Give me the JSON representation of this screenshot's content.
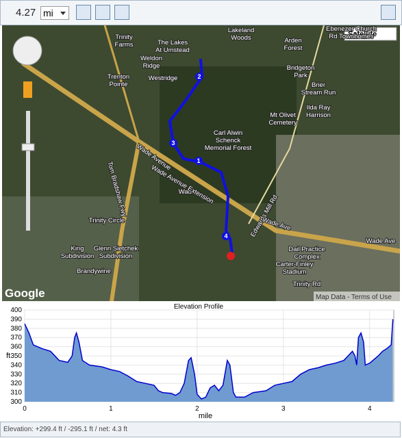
{
  "toolbar": {
    "distance": "4.27",
    "unit": "mi"
  },
  "map": {
    "map_type": "Satellite",
    "logo": "Google",
    "credits": "Map Data - Terms of Use",
    "markers": [
      "1",
      "2",
      "3",
      "4"
    ],
    "labels": [
      [
        "Trinity",
        "Farms"
      ],
      [
        "The Lakes",
        "At Umstead"
      ],
      [
        "Lakeland",
        "Woods"
      ],
      [
        "Weldon",
        "Ridge"
      ],
      [
        "Westridge"
      ],
      [
        "Trenton",
        "Pointe"
      ],
      [
        "Arden",
        "Forest"
      ],
      [
        "Ebenezer Church",
        "Rd Townhomes"
      ],
      [
        "Bridgeton",
        "Park"
      ],
      [
        "Brier",
        "Stream Run"
      ],
      [
        "Ilda Ray",
        "Harrison"
      ],
      [
        "Carl Alwin",
        "Schenck",
        "Memorial Forest"
      ],
      [
        "Mt Olivet",
        "Cemetery"
      ],
      [
        "Wade"
      ],
      [
        "Trinity Circle"
      ],
      [
        "King",
        "Subdivision"
      ],
      [
        "Glenn Sietchek",
        "Subdivision"
      ],
      [
        "Brandywine"
      ],
      [
        "Dail Practice",
        "Complex"
      ],
      [
        "Carter-Finley",
        "Stadium"
      ],
      [
        "Trinity Rd"
      ]
    ],
    "roads": [
      "Wade Avenue",
      "Wade Avenue Extension",
      "Edwards Mill Rd",
      "Tom Bradshaw Fwy",
      "Wade Ave",
      "Wade Ave"
    ]
  },
  "elevation_profile": {
    "type": "area",
    "title": "Elevation Profile",
    "x_label": "mile",
    "y_label": "ft",
    "color": "#6f9bd1",
    "line_color": "#0000cc",
    "x": [
      0,
      0.05,
      0.1,
      0.2,
      0.3,
      0.4,
      0.5,
      0.55,
      0.58,
      0.6,
      0.63,
      0.67,
      0.75,
      0.9,
      1.0,
      1.1,
      1.2,
      1.3,
      1.4,
      1.5,
      1.55,
      1.6,
      1.7,
      1.75,
      1.8,
      1.85,
      1.9,
      1.93,
      1.97,
      2.0,
      2.05,
      2.1,
      2.15,
      2.2,
      2.25,
      2.3,
      2.35,
      2.38,
      2.42,
      2.45,
      2.55,
      2.65,
      2.8,
      2.9,
      3.0,
      3.1,
      3.2,
      3.3,
      3.4,
      3.5,
      3.6,
      3.7,
      3.75,
      3.8,
      3.83,
      3.85,
      3.87,
      3.9,
      3.93,
      3.95,
      4.0,
      4.1,
      4.15,
      4.2,
      4.25,
      4.27
    ],
    "values": [
      385,
      375,
      362,
      358,
      355,
      345,
      343,
      350,
      370,
      375,
      365,
      345,
      340,
      338,
      335,
      333,
      328,
      322,
      320,
      318,
      312,
      310,
      309,
      307,
      310,
      320,
      345,
      348,
      330,
      308,
      303,
      305,
      315,
      318,
      312,
      318,
      345,
      340,
      310,
      305,
      305,
      310,
      312,
      318,
      320,
      322,
      330,
      335,
      337,
      340,
      342,
      345,
      350,
      355,
      350,
      340,
      370,
      375,
      365,
      340,
      342,
      350,
      355,
      358,
      362,
      390
    ],
    "xlim": [
      0,
      4.28
    ],
    "ylim": [
      300,
      400
    ],
    "xticks": [
      0,
      1,
      2,
      3,
      4
    ],
    "yticks": [
      300,
      310,
      320,
      330,
      340,
      350,
      360,
      370,
      380,
      390,
      400
    ],
    "grid": true
  },
  "footer": "Elevation: +299.4 ft / -295.1 ft / net: 4.3 ft"
}
